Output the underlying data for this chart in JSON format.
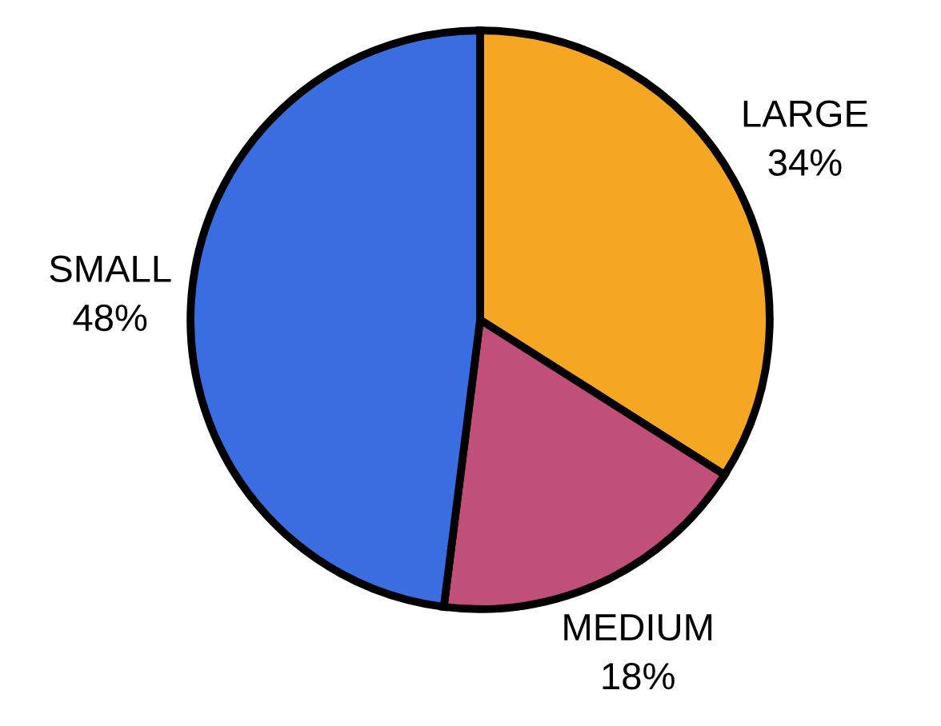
{
  "chart_data": {
    "type": "pie",
    "categories": [
      "LARGE",
      "MEDIUM",
      "SMALL"
    ],
    "values": [
      34,
      18,
      48
    ],
    "value_labels": [
      "34%",
      "18%",
      "48%"
    ],
    "colors": [
      "#f5a623",
      "#c0507a",
      "#3a6ee0"
    ]
  }
}
